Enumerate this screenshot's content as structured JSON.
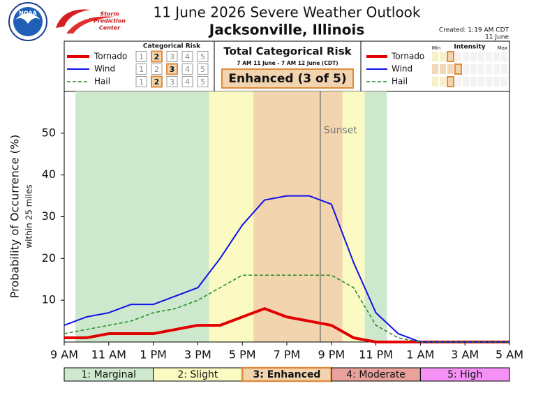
{
  "chart_data": {
    "type": "line",
    "title": "11 June 2026 Severe Weather Outlook",
    "subtitle": "Jacksonville, Illinois",
    "created": [
      "Created: 1:19 AM CDT",
      "11 June"
    ],
    "logo_texts": [
      "NOAA",
      "Storm",
      "Prediction",
      "Center"
    ],
    "risk_panel": {
      "title": "Categorical Risk",
      "levels": [
        1,
        2,
        3,
        4,
        5
      ]
    },
    "total": {
      "title": "Total Categorical Risk",
      "period": "7 AM 11 June - 7 AM 12 June (CDT)",
      "label": "Enhanced (3 of 5)",
      "risk": 3
    },
    "intensity": {
      "title": "Intensity",
      "min": "Min",
      "max": "Max"
    },
    "ylabel": "Probability of Occurrence (%)",
    "ylabel_sub": "within 25 miles",
    "x": [
      9,
      10,
      11,
      12,
      13,
      14,
      15,
      16,
      17,
      18,
      19,
      20,
      21,
      22,
      23,
      24,
      25,
      26,
      27,
      28,
      29
    ],
    "xlim": [
      9,
      29
    ],
    "xticks": [
      {
        "value": 9,
        "label": "9 AM"
      },
      {
        "value": 11,
        "label": "11 AM"
      },
      {
        "value": 13,
        "label": "1 PM"
      },
      {
        "value": 15,
        "label": "3 PM"
      },
      {
        "value": 17,
        "label": "5 PM"
      },
      {
        "value": 19,
        "label": "7 PM"
      },
      {
        "value": 21,
        "label": "9 PM"
      },
      {
        "value": 23,
        "label": "11 PM"
      },
      {
        "value": 25,
        "label": "1 AM"
      },
      {
        "value": 27,
        "label": "3 AM"
      },
      {
        "value": 29,
        "label": "5 AM"
      }
    ],
    "ylim": [
      0,
      60
    ],
    "yticks": [
      10,
      20,
      30,
      40,
      50
    ],
    "series": [
      {
        "name": "Tornado",
        "color": "#e00000",
        "width": 4,
        "dashed": false,
        "risk": 2,
        "intensity": 3,
        "intensity_color": "#f7f1c6",
        "values": [
          1,
          1,
          2,
          2,
          2,
          3,
          4,
          4,
          6,
          8,
          6,
          5,
          4,
          1,
          0,
          0,
          0,
          0,
          0,
          0,
          0
        ]
      },
      {
        "name": "Wind",
        "color": "#1010e8",
        "width": 2,
        "dashed": false,
        "risk": 3,
        "intensity": 4,
        "intensity_color": "#f1d8b6",
        "values": [
          4,
          6,
          7,
          9,
          9,
          11,
          13,
          20,
          28,
          34,
          35,
          35,
          33,
          19,
          7,
          2,
          0,
          0,
          0,
          0,
          0
        ]
      },
      {
        "name": "Hail",
        "color": "#1e8a1e",
        "width": 1.5,
        "dashed": true,
        "risk": 2,
        "intensity": 3,
        "intensity_color": "#f7f1c6",
        "values": [
          2,
          3,
          4,
          5,
          7,
          8,
          10,
          13,
          16,
          16,
          16,
          16,
          16,
          13,
          4,
          1,
          0,
          0,
          0,
          0,
          0
        ]
      }
    ],
    "levels": [
      {
        "label": "1: Marginal",
        "color": "#cde8cd"
      },
      {
        "label": "2: Slight",
        "color": "#fafac2"
      },
      {
        "label": "3: Enhanced",
        "color": "#f2d5ae"
      },
      {
        "label": "4: Moderate",
        "color": "#e9a19b"
      },
      {
        "label": "5: High",
        "color": "#f590f5"
      }
    ],
    "bands": [
      {
        "start": 9.5,
        "end": 15.5,
        "level": 1
      },
      {
        "start": 15.5,
        "end": 17.5,
        "level": 2
      },
      {
        "start": 17.5,
        "end": 21.5,
        "level": 3
      },
      {
        "start": 21.5,
        "end": 22.5,
        "level": 2
      },
      {
        "start": 22.5,
        "end": 23.5,
        "level": 1
      }
    ],
    "annotations": [
      {
        "x": 20.5,
        "text": "Sunset",
        "color": "#777777"
      }
    ]
  }
}
